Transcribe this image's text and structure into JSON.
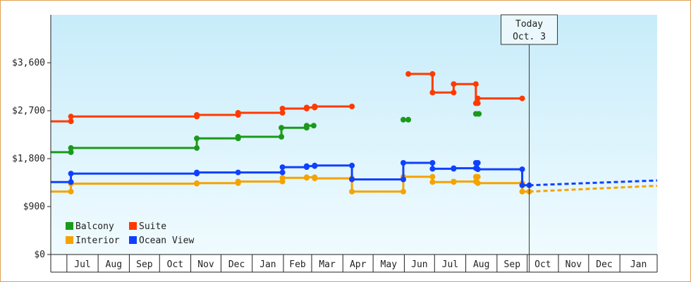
{
  "chart_data": {
    "type": "line",
    "title": "",
    "xlabel": "",
    "ylabel": "",
    "ylim": [
      0,
      4500
    ],
    "y_ticks": [
      0,
      900,
      1800,
      2700,
      3600
    ],
    "y_tick_labels": [
      "$0",
      "$900",
      "$1,800",
      "$2,700",
      "$3,600"
    ],
    "x_domain": [
      "2024-06-15",
      "2026-02-07"
    ],
    "x_ticks": [
      {
        "date": "2024-07-01",
        "label": "Jul"
      },
      {
        "date": "2024-08-01",
        "label": "Aug"
      },
      {
        "date": "2024-09-01",
        "label": "Sep"
      },
      {
        "date": "2024-10-01",
        "label": "Oct"
      },
      {
        "date": "2024-11-01",
        "label": "Nov"
      },
      {
        "date": "2024-12-01",
        "label": "Dec"
      },
      {
        "date": "2025-01-01",
        "label": "Jan"
      },
      {
        "date": "2025-02-01",
        "label": "Feb"
      },
      {
        "date": "2025-03-01",
        "label": "Mar"
      },
      {
        "date": "2025-04-01",
        "label": "Apr"
      },
      {
        "date": "2025-05-01",
        "label": "May"
      },
      {
        "date": "2025-06-01",
        "label": "Jun"
      },
      {
        "date": "2025-07-01",
        "label": "Jul"
      },
      {
        "date": "2025-08-01",
        "label": "Aug"
      },
      {
        "date": "2025-09-01",
        "label": "Sep"
      },
      {
        "date": "2025-10-01",
        "label": "Oct"
      },
      {
        "date": "2025-11-01",
        "label": "Nov"
      },
      {
        "date": "2025-12-01",
        "label": "Dec"
      },
      {
        "date": "2026-01-01",
        "label": "Jan"
      }
    ],
    "grid": false,
    "background_gradient": [
      "#c8ecfa",
      "#f0fbff"
    ],
    "today": {
      "date": "2025-10-03",
      "line1": "Today",
      "line2": "Oct. 3"
    },
    "legend_position": "bottom-left",
    "series": [
      {
        "name": "Balcony",
        "color": "#1a9a1a",
        "points": [
          [
            "2024-06-15",
            1920
          ],
          [
            "2024-07-05",
            1920
          ],
          [
            "2024-07-05",
            2000
          ],
          [
            "2024-11-07",
            2000
          ],
          [
            "2024-11-07",
            2180
          ],
          [
            "2024-12-18",
            2180
          ],
          [
            "2024-12-18",
            2210
          ],
          [
            "2025-01-30",
            2210
          ],
          [
            "2025-01-30",
            2380
          ],
          [
            "2025-02-24",
            2380
          ],
          [
            "2025-02-24",
            2420
          ],
          [
            "2025-03-03",
            2420
          ]
        ]
      },
      {
        "name": "Balcony",
        "color": "#1a9a1a",
        "points": [
          [
            "2025-05-31",
            2530
          ],
          [
            "2025-06-05",
            2530
          ]
        ]
      },
      {
        "name": "Balcony",
        "color": "#1a9a1a",
        "points": [
          [
            "2025-08-11",
            2640
          ],
          [
            "2025-08-14",
            2640
          ]
        ]
      },
      {
        "name": "Suite",
        "color": "#ff3a00",
        "points": [
          [
            "2024-06-15",
            2500
          ],
          [
            "2024-07-05",
            2500
          ],
          [
            "2024-07-05",
            2590
          ],
          [
            "2024-11-07",
            2590
          ],
          [
            "2024-11-07",
            2620
          ],
          [
            "2024-12-18",
            2620
          ],
          [
            "2024-12-18",
            2660
          ],
          [
            "2025-01-31",
            2660
          ],
          [
            "2025-01-31",
            2740
          ],
          [
            "2025-02-24",
            2740
          ],
          [
            "2025-02-24",
            2760
          ],
          [
            "2025-03-04",
            2760
          ],
          [
            "2025-03-04",
            2780
          ],
          [
            "2025-04-10",
            2780
          ]
        ]
      },
      {
        "name": "Suite",
        "color": "#ff3a00",
        "points": [
          [
            "2025-06-05",
            3390
          ],
          [
            "2025-06-29",
            3390
          ],
          [
            "2025-06-29",
            3040
          ],
          [
            "2025-07-20",
            3040
          ],
          [
            "2025-07-20",
            3200
          ],
          [
            "2025-08-11",
            3200
          ],
          [
            "2025-08-11",
            2840
          ],
          [
            "2025-08-13",
            2840
          ],
          [
            "2025-08-13",
            2930
          ],
          [
            "2025-09-26",
            2930
          ]
        ]
      },
      {
        "name": "Interior",
        "color": "#f5a300",
        "points": [
          [
            "2024-06-15",
            1180
          ],
          [
            "2024-07-05",
            1180
          ],
          [
            "2024-07-05",
            1330
          ],
          [
            "2024-11-07",
            1330
          ],
          [
            "2024-11-07",
            1340
          ],
          [
            "2024-12-18",
            1340
          ],
          [
            "2024-12-18",
            1370
          ],
          [
            "2025-01-31",
            1370
          ],
          [
            "2025-01-31",
            1440
          ],
          [
            "2025-02-24",
            1440
          ],
          [
            "2025-02-24",
            1450
          ],
          [
            "2025-03-04",
            1450
          ],
          [
            "2025-03-04",
            1430
          ],
          [
            "2025-04-10",
            1430
          ],
          [
            "2025-04-10",
            1180
          ],
          [
            "2025-05-31",
            1180
          ],
          [
            "2025-05-31",
            1460
          ],
          [
            "2025-06-29",
            1460
          ],
          [
            "2025-06-29",
            1360
          ],
          [
            "2025-07-20",
            1360
          ],
          [
            "2025-07-20",
            1370
          ],
          [
            "2025-08-11",
            1370
          ],
          [
            "2025-08-11",
            1460
          ],
          [
            "2025-08-13",
            1460
          ],
          [
            "2025-08-13",
            1340
          ],
          [
            "2025-09-26",
            1340
          ],
          [
            "2025-09-26",
            1180
          ],
          [
            "2025-10-03",
            1180
          ]
        ]
      },
      {
        "name": "Ocean View",
        "color": "#1040ff",
        "points": [
          [
            "2024-06-15",
            1360
          ],
          [
            "2024-07-05",
            1360
          ],
          [
            "2024-07-05",
            1520
          ],
          [
            "2024-11-07",
            1520
          ],
          [
            "2024-11-07",
            1540
          ],
          [
            "2024-12-18",
            1540
          ],
          [
            "2024-12-18",
            1540
          ],
          [
            "2025-01-31",
            1540
          ],
          [
            "2025-01-31",
            1640
          ],
          [
            "2025-02-24",
            1640
          ],
          [
            "2025-02-24",
            1660
          ],
          [
            "2025-03-04",
            1660
          ],
          [
            "2025-03-04",
            1670
          ],
          [
            "2025-04-10",
            1670
          ],
          [
            "2025-04-10",
            1410
          ],
          [
            "2025-05-31",
            1410
          ],
          [
            "2025-05-31",
            1720
          ],
          [
            "2025-06-29",
            1720
          ],
          [
            "2025-06-29",
            1610
          ],
          [
            "2025-07-20",
            1610
          ],
          [
            "2025-07-20",
            1620
          ],
          [
            "2025-08-11",
            1620
          ],
          [
            "2025-08-11",
            1720
          ],
          [
            "2025-08-13",
            1720
          ],
          [
            "2025-08-13",
            1600
          ],
          [
            "2025-09-26",
            1600
          ],
          [
            "2025-09-26",
            1300
          ],
          [
            "2025-10-03",
            1300
          ]
        ]
      }
    ],
    "forecast": [
      {
        "name": "Ocean View",
        "color": "#1040ff",
        "points": [
          [
            "2025-10-03",
            1300
          ],
          [
            "2026-02-07",
            1390
          ]
        ]
      },
      {
        "name": "Interior",
        "color": "#f5a300",
        "points": [
          [
            "2025-10-03",
            1180
          ],
          [
            "2026-02-07",
            1290
          ]
        ]
      }
    ],
    "legend": [
      {
        "name": "Balcony",
        "color": "#1a9a1a"
      },
      {
        "name": "Suite",
        "color": "#ff3a00"
      },
      {
        "name": "Interior",
        "color": "#f5a300"
      },
      {
        "name": "Ocean View",
        "color": "#1040ff"
      }
    ]
  }
}
